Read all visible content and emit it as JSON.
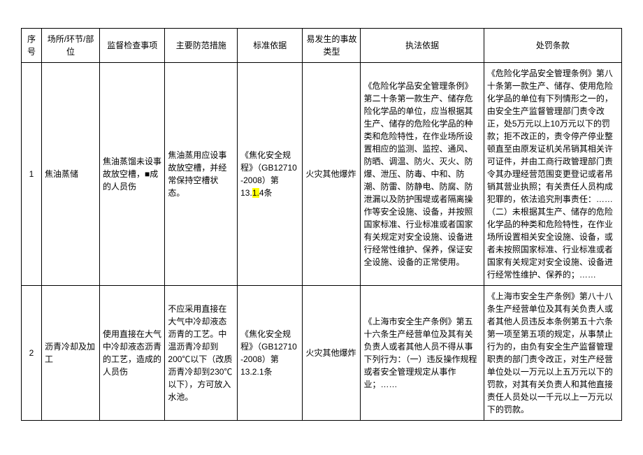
{
  "table": {
    "columns": [
      {
        "key": "seq",
        "label": "序号",
        "class": "col-seq"
      },
      {
        "key": "place",
        "label": "场所/环节/部位",
        "class": "col-place"
      },
      {
        "key": "check",
        "label": "监督检查事项",
        "class": "col-check"
      },
      {
        "key": "measure",
        "label": "主要防范措施",
        "class": "col-measure"
      },
      {
        "key": "standard",
        "label": "标准依据",
        "class": "col-standard"
      },
      {
        "key": "accident",
        "label": "易发生的事故类型",
        "class": "col-accident"
      },
      {
        "key": "law",
        "label": "执法依据",
        "class": "col-law"
      },
      {
        "key": "penalty",
        "label": "处罚条款",
        "class": "col-penalty"
      }
    ],
    "rows": [
      {
        "seq": "1",
        "place": "焦油蒸储",
        "check": "焦油蒸馏未设事故放空槽，■成的人员伤",
        "measure": "焦油蒸用应设事故放空槽，并经常保持空槽状态。",
        "standard_prefix": "《焦化安全规程》（GB12710 -2008）第13.",
        "standard_highlight": "1.",
        "standard_suffix": "4条",
        "accident": "火灾其他爆炸",
        "law": "《危险化学品安全管理条例》第二十条第一款生产、储存危险化学品的单位，应当根据其生产、储存的危险化学品的种类和危险特性，在作业场所设置相应的监测、监控、通风、防晒、调温、防火、灭火、防爆、泄压、防毒、中和、防潮、防雷、防静电、防腐、防泄漏以及防护围堤或者隔离操作等安全设施、设备，并按照国家标准、行业标准或者国家有关规定对安全设施、设备进行经常性维护、保养，保证安全设施、设备的正常使用。",
        "penalty": "《危险化学品安全管理条例》第八十条第一款生产、储存、使用危险化学品的单位有下列情形之一的，由安全生产监督管理部门责令改正，处5万元以上10万元以下的罚款；拒不改正的，责令停产停业整顿直至由原发证机关吊销其相关许可证件，并由工商行政管理部门责令其办理经营范围变更登记或者吊销其营业执照；有关责任人员构成犯罪的，依法追究刑事责任：……（二）未根据其生产、储存的危险化学品的种类和危险特性，在作业场所设置相关安全设施、设备，或者未按照国家标准、行业标准或者国家有关规定对安全设施、设备进行经常性维护、保养的；……"
      },
      {
        "seq": "2",
        "place": "沥青冷却及加工",
        "check": "使用直接在大气中冷却液态沥青的工艺，造成的人员伤",
        "measure": "不应采用直接在大气中冷却液态沥青的工艺。中温沥青冷却到200℃以下（改质沥青冷却到230℃以下），方可放入水池。",
        "standard_prefix": "《焦化安全规程》（GB12710 -2008）第13.2.1条",
        "standard_highlight": "",
        "standard_suffix": "",
        "accident": "火灾其他爆炸",
        "law": "《上海市安全生产条例》第五十六条生产经营单位及其有关负责人或者其他人员不得从事下列行为：（一）违反操作规程或者安全管理规定从事作业；……",
        "penalty": "《上海市安全生产条例》第八十八条生产经营单位及其有关负责人或者其他人员违反本条例第五十六条第一项至第五项的规定，从事禁止行为的，由负有安全生产监督管理职责的部门责令改正，对生产经营单位处以一万元以上五万元以下的罚款，对其有关负责人和其他直接责任人员处以一千元以上一万元以下的罚款。"
      }
    ]
  },
  "styling": {
    "font_family": "SimSun",
    "font_size": 12,
    "border_color": "#000000",
    "background_color": "#ffffff",
    "highlight_color": "#ffff00",
    "text_color": "#000000",
    "line_height": 1.5
  }
}
